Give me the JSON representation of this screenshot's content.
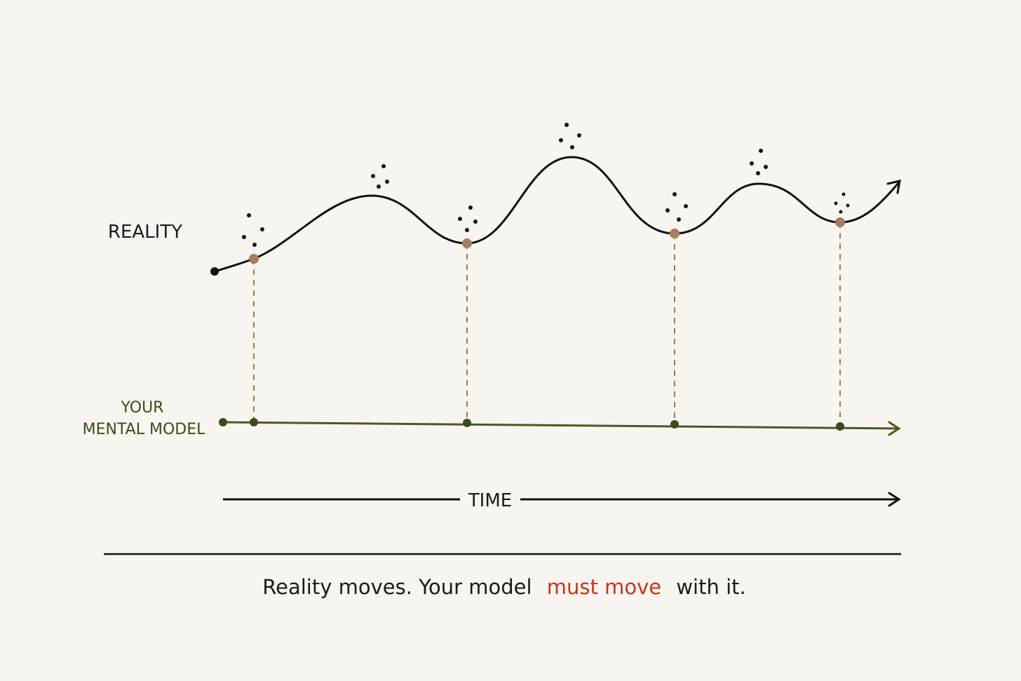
{
  "labels": {
    "reality": "REALITY",
    "model_line1": "YOUR",
    "model_line2": "MENTAL MODEL",
    "time": "TIME"
  },
  "caption": {
    "parts": [
      "Reality moves. Your model",
      "must move",
      "with it."
    ]
  }
}
